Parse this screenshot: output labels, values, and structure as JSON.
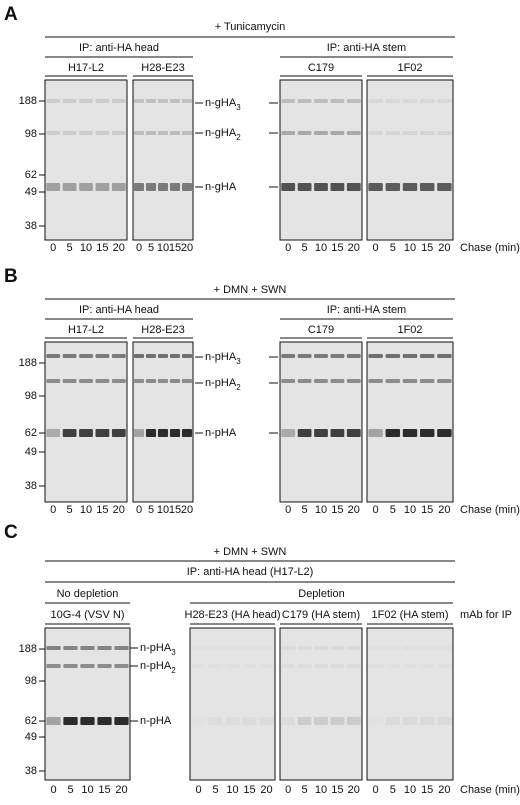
{
  "panels": [
    {
      "letter": "A",
      "treatment": "+ Tunicamycin",
      "groups": [
        {
          "title": "IP: anti-HA head",
          "gels": [
            "H17-L2",
            "H28-E23"
          ]
        },
        {
          "title": "IP: anti-HA stem",
          "gels": [
            "C179",
            "1F02"
          ]
        }
      ],
      "markers": [
        "188",
        "98",
        "62",
        "49",
        "38"
      ],
      "bands": [
        {
          "text": "n-gHA",
          "sub": "3"
        },
        {
          "text": "n-gHA",
          "sub": "2"
        },
        {
          "text": "n-gHA"
        }
      ],
      "lanes": [
        "0",
        "5",
        "10",
        "15",
        "20"
      ],
      "axis": "Chase (min)"
    },
    {
      "letter": "B",
      "treatment": "+ DMN  + SWN",
      "groups": [
        {
          "title": "IP: anti-HA head",
          "gels": [
            "H17-L2",
            "H28-E23"
          ]
        },
        {
          "title": "IP: anti-HA stem",
          "gels": [
            "C179",
            "1F02"
          ]
        }
      ],
      "markers": [
        "188",
        "98",
        "62",
        "49",
        "38"
      ],
      "bands": [
        {
          "text": "n-pHA",
          "sub": "3"
        },
        {
          "text": "n-pHA",
          "sub": "2"
        },
        {
          "text": "n-pHA"
        }
      ],
      "lanes": [
        "0",
        "5",
        "10",
        "15",
        "20"
      ],
      "axis": "Chase (min)"
    },
    {
      "letter": "C",
      "treatment": "+ DMN  + SWN",
      "ip": "IP: anti-HA head (H17-L2)",
      "groups": [
        {
          "title": "No depletion",
          "gels": [
            "10G-4 (VSV N)"
          ]
        },
        {
          "title": "Depletion",
          "gels": [
            "H28-E23 (HA head)",
            "C179 (HA stem)",
            "1F02 (HA stem)"
          ]
        }
      ],
      "gel_note": "mAb for IP",
      "markers": [
        "188",
        "98",
        "62",
        "49",
        "38"
      ],
      "bands": [
        {
          "text": "n-pHA",
          "sub": "3"
        },
        {
          "text": "n-pHA",
          "sub": "2"
        },
        {
          "text": "n-pHA"
        }
      ],
      "lanes": [
        "0",
        "5",
        "10",
        "15",
        "20"
      ],
      "axis": "Chase (min)"
    }
  ]
}
